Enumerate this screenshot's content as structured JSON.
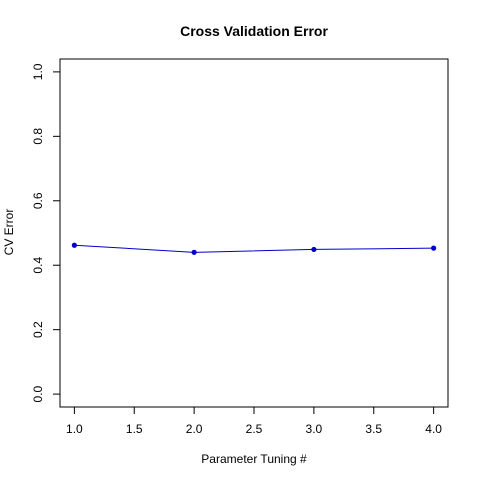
{
  "chart_data": {
    "type": "line",
    "title": "Cross Validation Error",
    "xlabel": "Parameter Tuning #",
    "ylabel": "CV Error",
    "x": [
      1,
      2,
      3,
      4
    ],
    "series": [
      {
        "values": [
          0.462,
          0.44,
          0.449,
          0.453
        ],
        "color": "#0000cc"
      }
    ],
    "xlim": [
      0.88,
      4.12
    ],
    "ylim": [
      -0.04,
      1.04
    ],
    "xticks": [
      1.0,
      1.5,
      2.0,
      2.5,
      3.0,
      3.5,
      4.0
    ],
    "xtick_labels": [
      "1.0",
      "1.5",
      "2.0",
      "2.5",
      "3.0",
      "3.5",
      "4.0"
    ],
    "yticks": [
      0.0,
      0.2,
      0.4,
      0.6,
      0.8,
      1.0
    ],
    "ytick_labels": [
      "0.0",
      "0.2",
      "0.4",
      "0.6",
      "0.8",
      "1.0"
    ],
    "grid": false
  }
}
